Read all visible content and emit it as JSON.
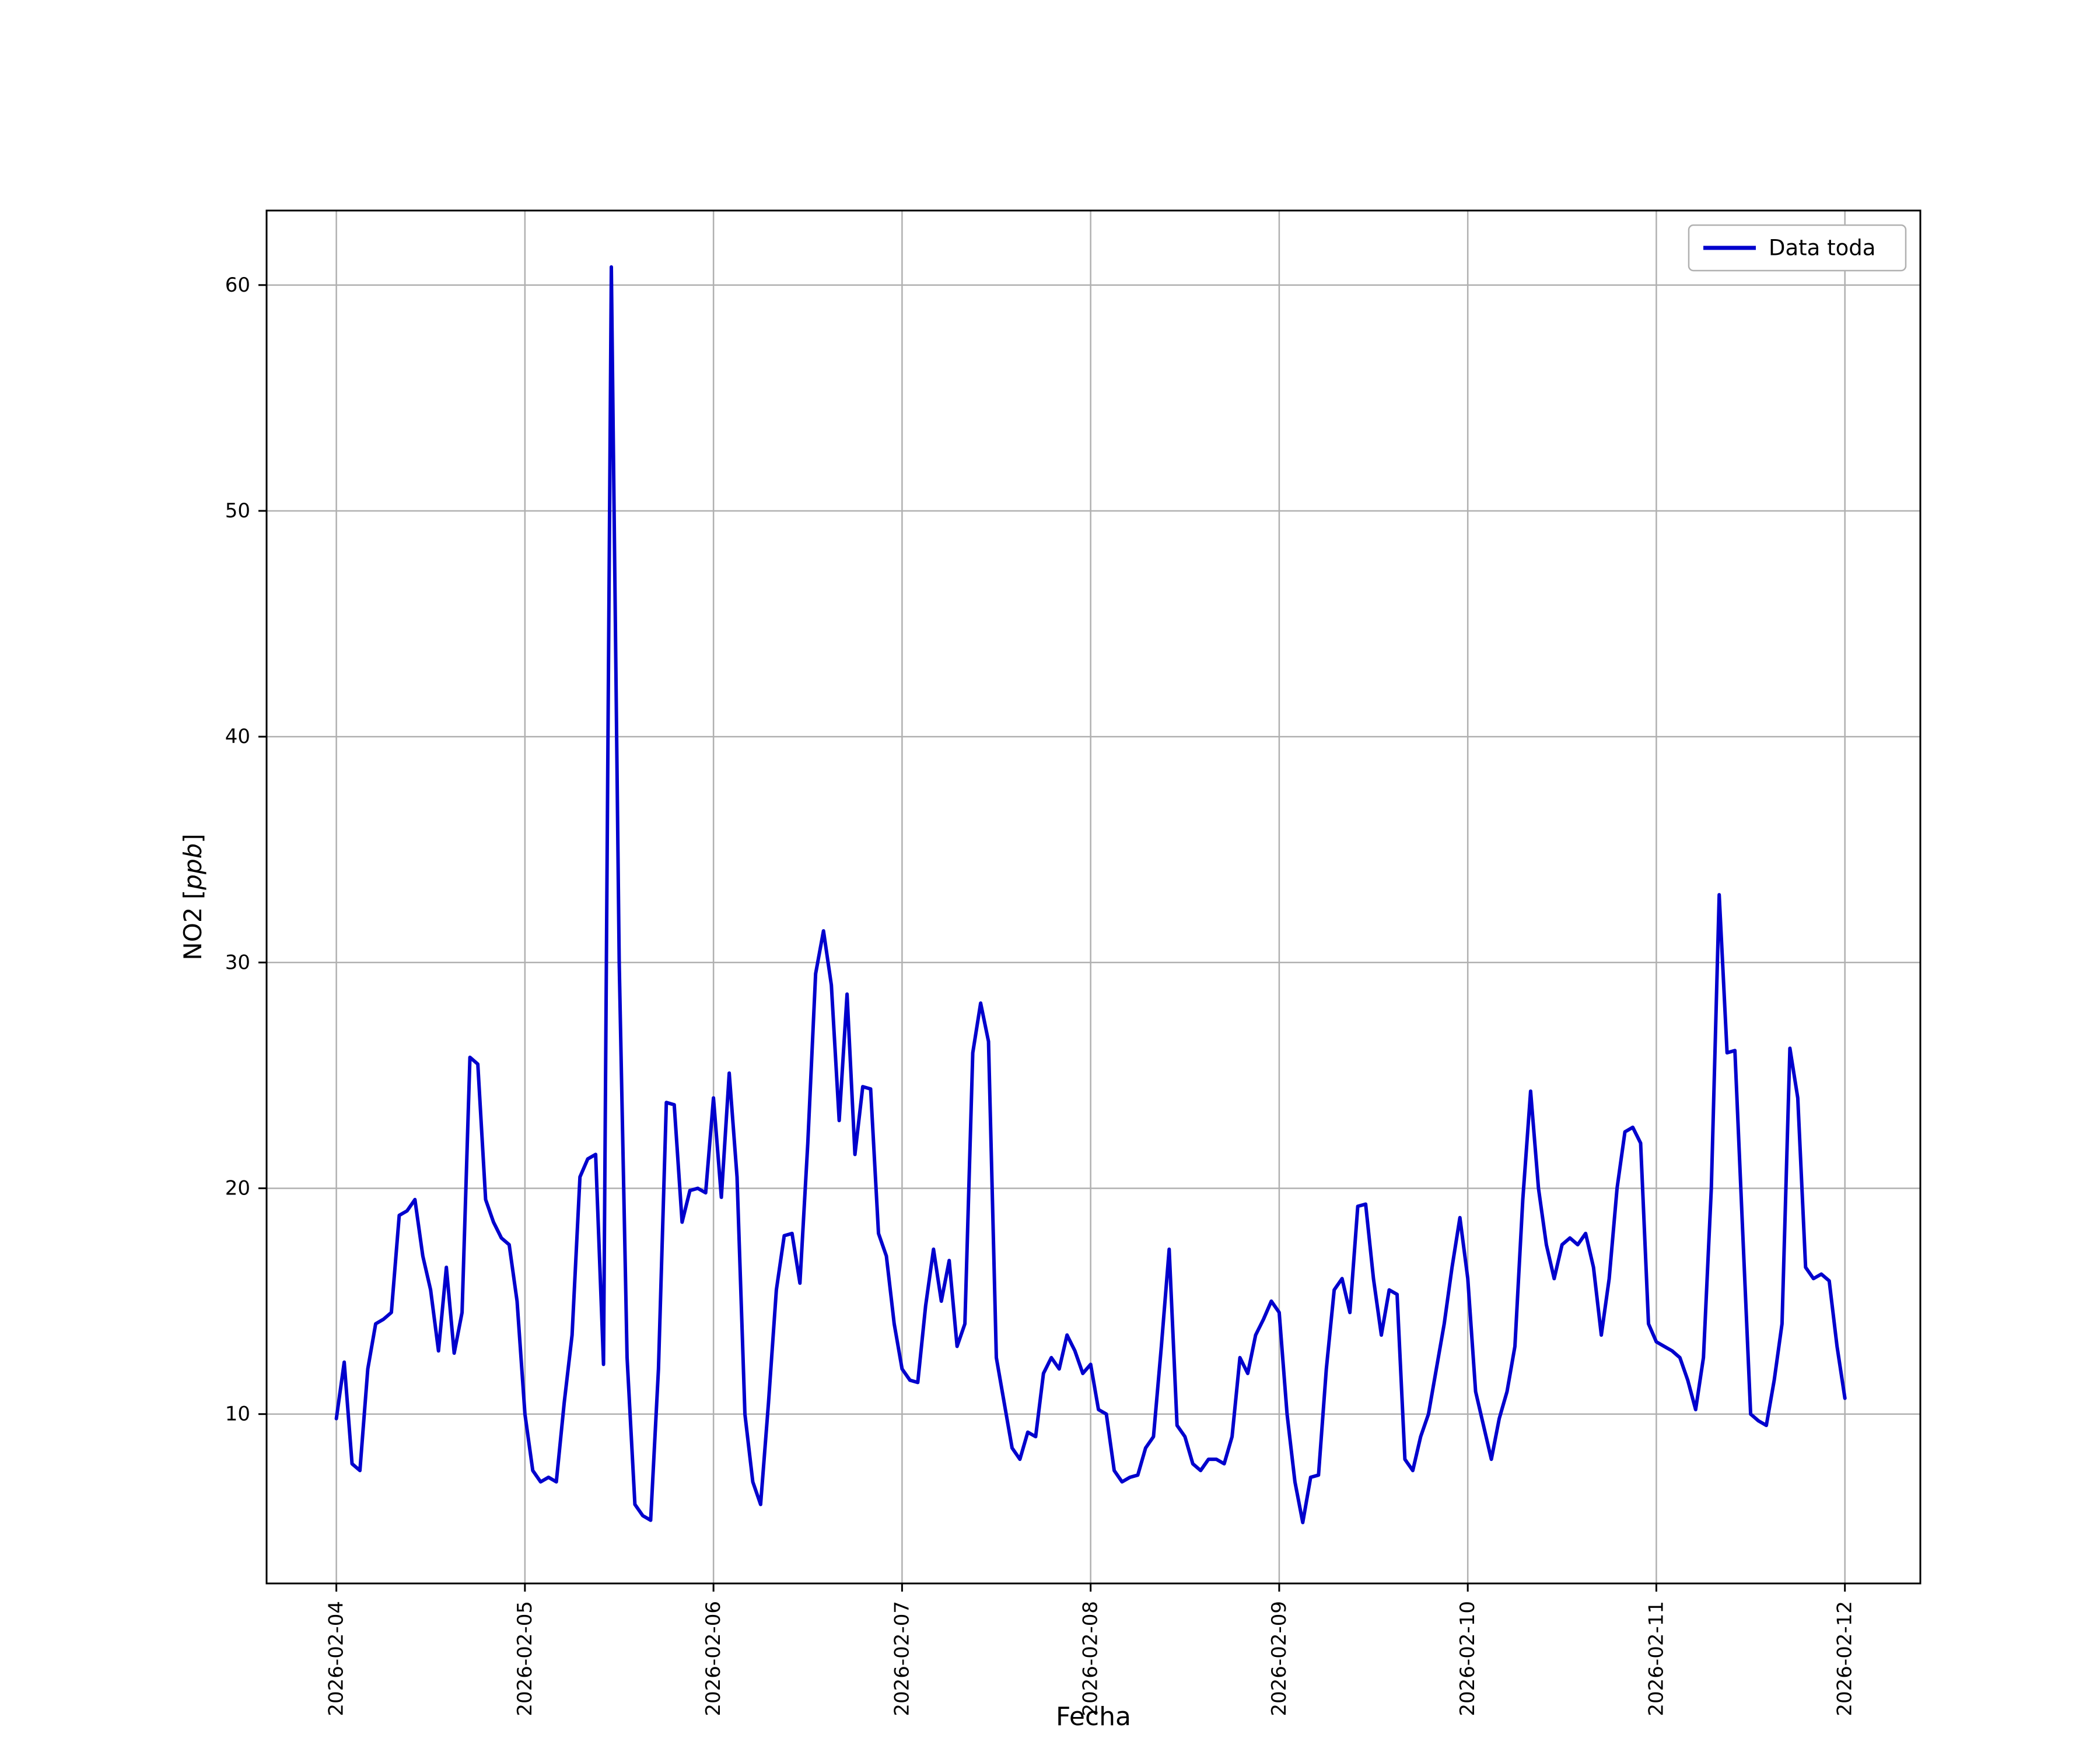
{
  "chart_data": {
    "type": "line",
    "title": "",
    "xlabel": "Fecha",
    "ylabel": "NO2 [ppb]",
    "ylabel_parts": {
      "prefix": "NO2 [",
      "italic": "ppb",
      "suffix": "]"
    },
    "legend": [
      {
        "label": "Data toda",
        "color": "#0000cd"
      }
    ],
    "legend_position": "upper right",
    "grid": true,
    "grid_color": "#b0b0b0",
    "line_color": "#0000cd",
    "axis_color": "#000000",
    "x_tick_labels": [
      "2026-02-04",
      "2026-02-05",
      "2026-02-06",
      "2026-02-07",
      "2026-02-08",
      "2026-02-09",
      "2026-02-10",
      "2026-02-11",
      "2026-02-12"
    ],
    "y_ticks": [
      10,
      20,
      30,
      40,
      50,
      60
    ],
    "xlim_days": [
      -0.37,
      8.4
    ],
    "ylim": [
      2.5,
      63.3
    ],
    "x_encoding": "index = hours since 2026-02-04 00:00 (24 points per day)",
    "series": [
      {
        "name": "Data toda",
        "values": [
          9.8,
          12.3,
          7.8,
          7.5,
          12.0,
          14.0,
          14.2,
          14.5,
          18.8,
          19.0,
          19.5,
          17.0,
          15.5,
          12.8,
          16.5,
          12.7,
          14.5,
          25.8,
          25.5,
          19.5,
          18.5,
          17.8,
          17.5,
          15.0,
          10.0,
          7.5,
          7.0,
          7.2,
          7.0,
          10.5,
          13.5,
          20.5,
          21.3,
          21.5,
          12.2,
          60.8,
          30.0,
          12.5,
          6.0,
          5.5,
          5.3,
          12.0,
          23.8,
          23.7,
          18.5,
          19.9,
          20.0,
          19.8,
          24.0,
          19.6,
          25.1,
          20.5,
          10.0,
          7.0,
          6.0,
          10.5,
          15.5,
          17.9,
          18.0,
          15.8,
          22.0,
          29.5,
          31.4,
          29.0,
          23.0,
          28.6,
          21.5,
          24.5,
          24.4,
          18.0,
          17.0,
          14.0,
          12.0,
          11.5,
          11.4,
          14.8,
          17.3,
          15.0,
          16.8,
          13.0,
          14.0,
          26.0,
          28.2,
          26.5,
          12.5,
          10.5,
          8.5,
          8.0,
          9.2,
          9.0,
          11.8,
          12.5,
          12.0,
          13.5,
          12.8,
          11.8,
          12.2,
          10.2,
          10.0,
          7.5,
          7.0,
          7.2,
          7.3,
          8.5,
          9.0,
          13.0,
          17.3,
          9.5,
          9.0,
          7.8,
          7.5,
          8.0,
          8.0,
          7.8,
          9.0,
          12.5,
          11.8,
          13.5,
          14.2,
          15.0,
          14.5,
          10.0,
          7.0,
          5.2,
          7.2,
          7.3,
          12.0,
          15.5,
          16.0,
          14.5,
          19.2,
          19.3,
          16.0,
          13.5,
          15.5,
          15.3,
          8.0,
          7.5,
          9.0,
          10.0,
          12.0,
          14.0,
          16.5,
          18.7,
          16.0,
          11.0,
          9.5,
          8.0,
          9.8,
          11.0,
          13.0,
          19.5,
          24.3,
          20.0,
          17.5,
          16.0,
          17.5,
          17.8,
          17.5,
          18.0,
          16.5,
          13.5,
          16.0,
          20.0,
          22.5,
          22.7,
          22.0,
          14.0,
          13.2,
          13.0,
          12.8,
          12.5,
          11.5,
          10.2,
          12.5,
          20.0,
          33.0,
          26.0,
          26.1,
          18.0,
          10.0,
          9.7,
          9.5,
          11.5,
          14.0,
          26.2,
          24.0,
          16.5,
          16.0,
          16.2,
          15.9,
          13.0,
          10.7
        ]
      }
    ]
  }
}
